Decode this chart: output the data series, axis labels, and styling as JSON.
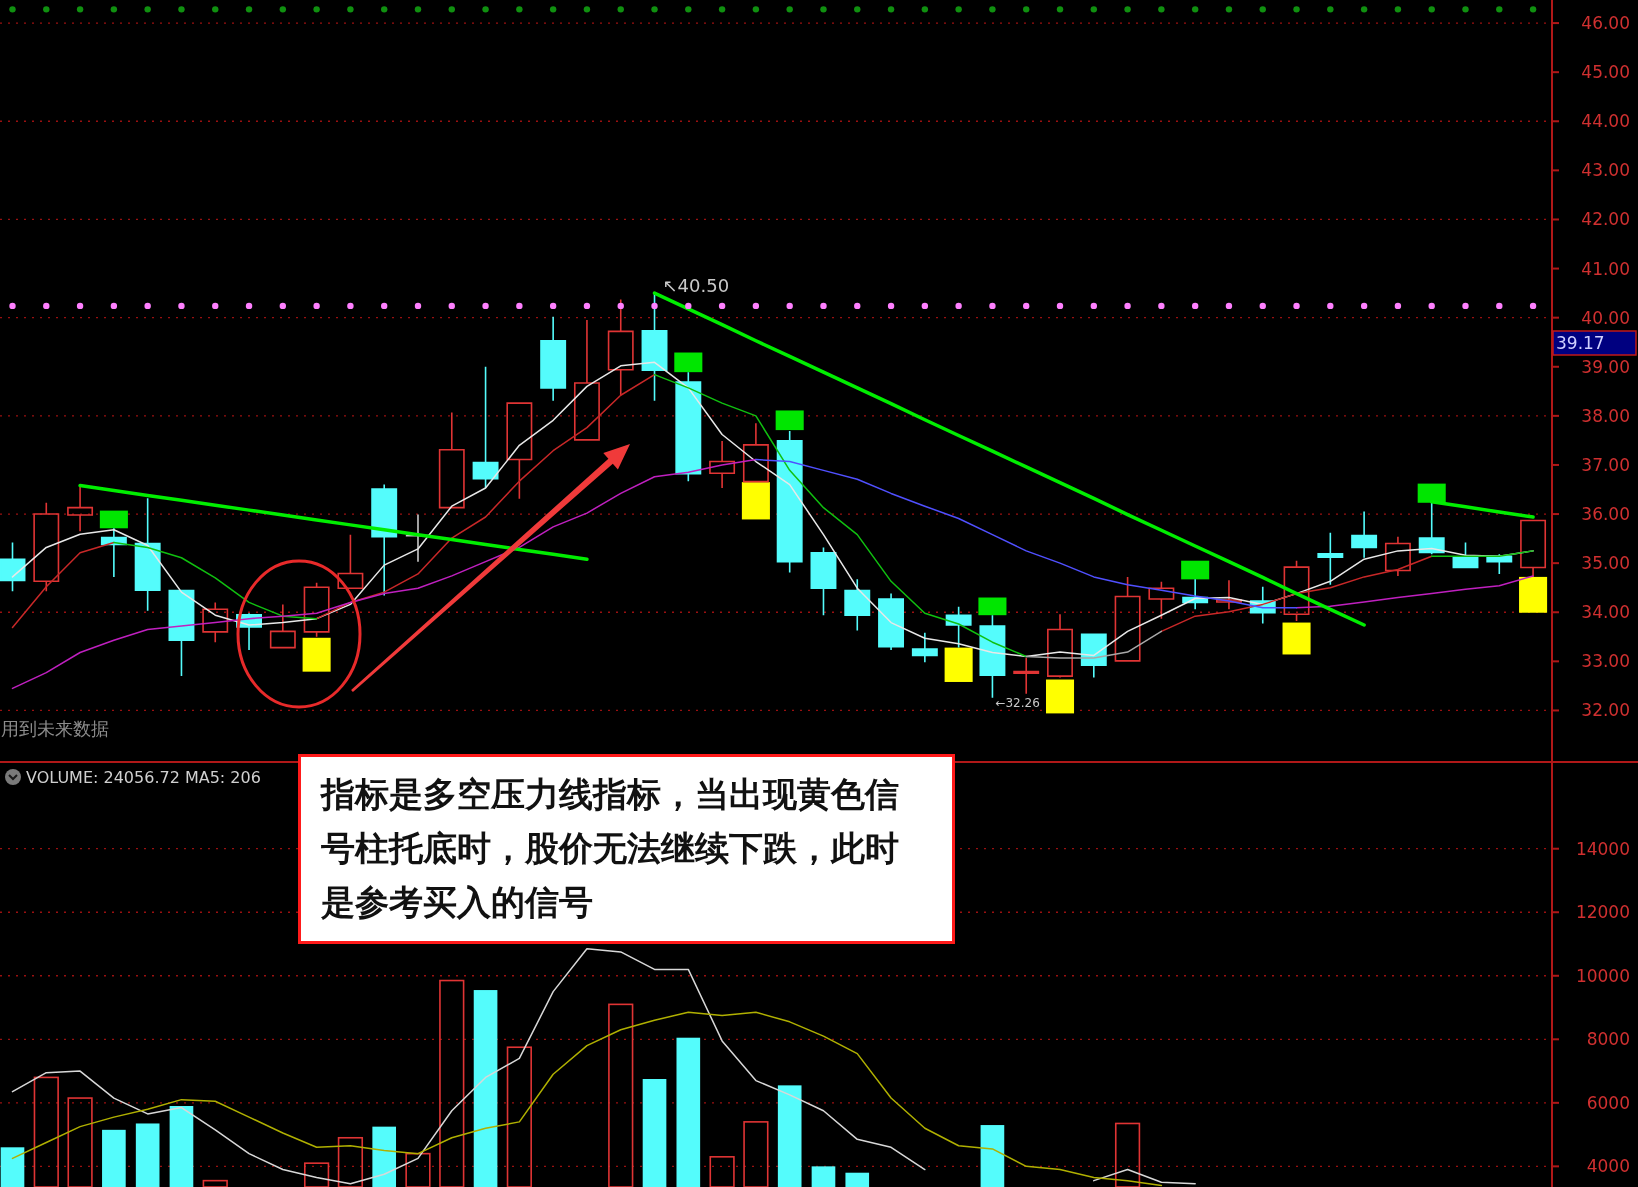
{
  "chart_data": [
    {
      "type": "candlestick",
      "categories": [
        null,
        null,
        null,
        null,
        null,
        null,
        null,
        null,
        null,
        null,
        null,
        null,
        null,
        null,
        null,
        null,
        null,
        null,
        null,
        null,
        null,
        null,
        null,
        null,
        null,
        null,
        null,
        null,
        null,
        null,
        null,
        null,
        null,
        null,
        null,
        null,
        null,
        null,
        null,
        null,
        null,
        null,
        null,
        null,
        null,
        null
      ],
      "ohlc": [
        [
          35.08,
          35.42,
          34.43,
          34.65
        ],
        [
          34.63,
          36.23,
          34.43,
          36.0
        ],
        [
          35.98,
          36.56,
          35.65,
          36.13
        ],
        [
          35.52,
          35.71,
          34.72,
          35.38
        ],
        [
          35.4,
          36.32,
          34.03,
          34.45
        ],
        [
          34.44,
          34.44,
          32.7,
          33.43
        ],
        [
          33.6,
          34.2,
          33.39,
          34.06
        ],
        [
          33.95,
          33.98,
          33.23,
          33.7
        ],
        [
          33.28,
          34.16,
          33.26,
          33.61
        ],
        [
          33.6,
          34.6,
          33.5,
          34.51
        ],
        [
          34.49,
          35.58,
          34.49,
          34.79
        ],
        [
          36.51,
          36.6,
          34.34,
          35.54
        ],
        [
          35.56,
          35.99,
          35.03,
          35.56
        ],
        [
          36.13,
          38.07,
          36.13,
          37.31
        ],
        [
          37.05,
          39.0,
          36.53,
          36.72
        ],
        [
          37.11,
          38.26,
          36.31,
          38.26
        ],
        [
          39.53,
          40.02,
          38.31,
          38.57
        ],
        [
          37.51,
          39.95,
          37.51,
          38.67
        ],
        [
          38.94,
          40.37,
          38.42,
          39.72
        ],
        [
          39.73,
          40.5,
          38.31,
          38.93
        ],
        [
          38.69,
          38.89,
          36.67,
          36.82
        ],
        [
          36.83,
          37.49,
          36.53,
          37.07
        ],
        [
          36.66,
          37.85,
          36.66,
          37.41
        ],
        [
          37.49,
          37.69,
          34.81,
          35.03
        ],
        [
          35.21,
          35.32,
          33.94,
          34.49
        ],
        [
          34.44,
          34.67,
          33.63,
          33.94
        ],
        [
          34.27,
          34.38,
          33.23,
          33.3
        ],
        [
          33.25,
          33.58,
          32.98,
          33.12
        ],
        [
          33.94,
          34.11,
          33.28,
          33.74
        ],
        [
          33.72,
          33.94,
          32.26,
          32.72
        ],
        [
          32.76,
          33.07,
          32.34,
          32.79
        ],
        [
          32.7,
          33.96,
          32.67,
          33.65
        ],
        [
          33.55,
          33.55,
          32.67,
          32.92
        ],
        [
          33.01,
          34.72,
          33.01,
          34.32
        ],
        [
          34.27,
          34.62,
          33.87,
          34.49
        ],
        [
          34.3,
          34.67,
          34.06,
          34.2
        ],
        [
          34.21,
          34.65,
          34.06,
          34.25
        ],
        [
          34.23,
          34.52,
          33.77,
          33.99
        ],
        [
          33.96,
          35.05,
          33.82,
          34.92
        ],
        [
          35.19,
          35.62,
          34.56,
          35.12
        ],
        [
          35.56,
          36.05,
          35.11,
          35.32
        ],
        [
          34.85,
          35.54,
          34.74,
          35.4
        ],
        [
          35.51,
          36.23,
          35.18,
          35.22
        ],
        [
          35.13,
          35.42,
          34.91,
          34.91
        ],
        [
          35.14,
          35.18,
          34.78,
          35.03
        ],
        [
          34.91,
          35.87,
          34.72,
          35.87
        ]
      ],
      "colors": [
        "#54fcfc",
        "#e03434",
        "#e03434",
        "#54fcfc",
        "#54fcfc",
        "#54fcfc",
        "#e03434",
        "#54fcfc",
        "#e03434",
        "#e03434",
        "#e03434",
        "#54fcfc",
        "#c8c8c8",
        "#e03434",
        "#54fcfc",
        "#e03434",
        "#54fcfc",
        "#e03434",
        "#e03434",
        "#54fcfc",
        "#54fcfc",
        "#e03434",
        "#e03434",
        "#54fcfc",
        "#54fcfc",
        "#54fcfc",
        "#54fcfc",
        "#54fcfc",
        "#54fcfc",
        "#54fcfc",
        "#e03434",
        "#e03434",
        "#54fcfc",
        "#e03434",
        "#e03434",
        "#54fcfc",
        "#e03434",
        "#54fcfc",
        "#e03434",
        "#54fcfc",
        "#54fcfc",
        "#e03434",
        "#54fcfc",
        "#54fcfc",
        "#54fcfc",
        "#e03434"
      ],
      "series": [
        {
          "type": "line",
          "color": "#e8e8e8",
          "values": [
            34.72,
            35.32,
            35.59,
            35.68,
            35.36,
            34.41,
            33.94,
            33.74,
            33.79,
            33.87,
            34.16,
            34.96,
            35.29,
            36.16,
            36.53,
            37.4,
            37.91,
            38.6,
            39.02,
            39.09,
            38.57,
            37.62,
            37.07,
            36.6,
            35.58,
            34.49,
            33.79,
            33.47,
            33.36,
            33.18,
            33.1,
            33.19,
            33.12,
            33.61,
            33.94,
            34.28,
            34.3,
            34.16,
            34.38,
            34.63,
            35.08,
            35.25,
            35.3,
            35.16,
            35.14,
            35.25
          ]
        },
        {
          "type": "line",
          "color": "#c82828",
          "values": [
            33.69,
            34.52,
            35.21,
            35.42,
            null,
            null,
            null,
            null,
            null,
            33.87,
            34.2,
            34.41,
            34.78,
            35.51,
            35.94,
            36.67,
            37.29,
            37.76,
            38.42,
            38.84,
            null,
            null,
            null,
            null,
            null,
            null,
            null,
            null,
            null,
            null,
            null,
            null,
            null,
            null,
            33.61,
            33.92,
            34.01,
            34.16,
            34.38,
            34.5,
            34.72,
            34.87,
            35.14,
            null,
            null,
            null
          ]
        },
        {
          "type": "line",
          "color": "#10c010",
          "values": [
            null,
            null,
            null,
            35.42,
            35.32,
            35.11,
            34.7,
            34.2,
            33.92,
            33.87,
            null,
            null,
            null,
            null,
            null,
            null,
            null,
            null,
            null,
            38.84,
            38.57,
            38.26,
            38.0,
            36.89,
            36.13,
            35.58,
            34.63,
            33.98,
            33.76,
            33.39,
            33.1,
            null,
            null,
            null,
            null,
            null,
            null,
            null,
            null,
            null,
            null,
            null,
            35.14,
            35.14,
            35.14,
            35.25
          ]
        },
        {
          "type": "line",
          "color": "#a8a8a8",
          "values": [
            null,
            null,
            null,
            null,
            null,
            null,
            null,
            null,
            null,
            null,
            null,
            null,
            null,
            null,
            null,
            null,
            null,
            null,
            null,
            null,
            null,
            null,
            null,
            null,
            null,
            null,
            null,
            null,
            null,
            null,
            33.1,
            33.07,
            33.07,
            33.19,
            33.61,
            null,
            null,
            null,
            null,
            null,
            null,
            null,
            null,
            null,
            null,
            null
          ]
        },
        {
          "type": "line",
          "color": "#c020c0",
          "values": [
            32.45,
            32.77,
            33.18,
            33.43,
            33.65,
            33.72,
            33.79,
            33.87,
            33.92,
            33.98,
            34.2,
            34.38,
            34.49,
            34.74,
            35.03,
            35.32,
            35.74,
            36.02,
            36.42,
            36.76,
            36.85,
            37.0,
            37.11,
            null,
            null,
            null,
            null,
            null,
            null,
            null,
            null,
            null,
            null,
            null,
            null,
            null,
            null,
            null,
            34.09,
            34.12,
            34.21,
            34.3,
            34.38,
            34.47,
            34.54,
            34.74
          ]
        },
        {
          "type": "line",
          "color": "#5050ff",
          "values": [
            null,
            null,
            null,
            null,
            null,
            null,
            null,
            null,
            null,
            null,
            null,
            null,
            null,
            null,
            null,
            null,
            null,
            null,
            null,
            null,
            null,
            null,
            37.11,
            37.07,
            36.89,
            36.71,
            36.42,
            36.16,
            35.91,
            35.58,
            35.25,
            35.0,
            34.72,
            34.56,
            34.45,
            34.33,
            34.23,
            34.09,
            34.09,
            null,
            null,
            null,
            null,
            null,
            null,
            null
          ]
        },
        {
          "type": "line",
          "color": "#00ee00",
          "values": [
            null,
            null,
            36.58,
            36.48,
            36.38,
            36.28,
            36.18,
            36.08,
            35.98,
            35.88,
            35.78,
            35.68,
            35.58,
            35.48,
            35.38,
            35.28,
            35.18,
            35.08,
            null,
            null,
            null,
            null,
            null,
            null,
            null,
            null,
            null,
            null,
            null,
            null,
            null,
            null,
            null,
            null,
            null,
            null,
            null,
            null,
            null,
            null,
            null,
            null,
            null,
            null,
            null,
            null
          ]
        },
        {
          "type": "line",
          "color": "#00ee00",
          "values": [
            null,
            null,
            null,
            null,
            null,
            null,
            null,
            null,
            null,
            null,
            null,
            null,
            null,
            null,
            null,
            null,
            null,
            null,
            null,
            40.5,
            40.18,
            39.86,
            39.53,
            39.21,
            38.89,
            38.57,
            38.25,
            37.92,
            37.6,
            37.28,
            36.96,
            36.64,
            36.32,
            35.99,
            35.67,
            35.35,
            35.03,
            34.71,
            34.38,
            34.06,
            33.74,
            null,
            null,
            null,
            null,
            null
          ]
        },
        {
          "type": "line",
          "color": "#00ee00",
          "values": [
            null,
            null,
            null,
            null,
            null,
            null,
            null,
            null,
            null,
            null,
            null,
            null,
            null,
            null,
            null,
            null,
            null,
            null,
            null,
            null,
            null,
            null,
            null,
            null,
            null,
            null,
            null,
            null,
            null,
            null,
            null,
            null,
            null,
            null,
            null,
            null,
            null,
            null,
            null,
            null,
            null,
            null,
            36.25,
            36.15,
            36.04,
            35.94
          ]
        },
        {
          "type": "bar",
          "color": "#ffff00",
          "base": [
            null,
            null,
            null,
            null,
            null,
            null,
            null,
            null,
            null,
            32.79,
            null,
            null,
            null,
            null,
            null,
            null,
            null,
            null,
            null,
            null,
            null,
            null,
            35.89,
            null,
            null,
            null,
            null,
            null,
            32.58,
            null,
            null,
            31.94,
            null,
            null,
            null,
            null,
            null,
            null,
            33.14,
            null,
            null,
            null,
            null,
            null,
            null,
            33.99
          ],
          "values": [
            null,
            null,
            null,
            null,
            null,
            null,
            null,
            null,
            null,
            0.69,
            null,
            null,
            null,
            null,
            null,
            null,
            null,
            null,
            null,
            null,
            null,
            null,
            0.76,
            null,
            null,
            null,
            null,
            null,
            0.7,
            null,
            null,
            0.69,
            null,
            null,
            null,
            null,
            null,
            null,
            0.65,
            null,
            null,
            null,
            null,
            null,
            null,
            0.73
          ]
        },
        {
          "type": "bar",
          "color": "#00e600",
          "base": [
            null,
            null,
            null,
            35.71,
            null,
            null,
            null,
            null,
            null,
            null,
            null,
            null,
            null,
            null,
            null,
            null,
            null,
            null,
            null,
            null,
            38.89,
            null,
            null,
            37.71,
            null,
            null,
            null,
            null,
            null,
            33.94,
            null,
            null,
            null,
            null,
            null,
            34.67,
            null,
            null,
            null,
            null,
            null,
            null,
            36.23,
            null,
            null,
            null
          ],
          "values": [
            null,
            null,
            null,
            0.36,
            null,
            null,
            null,
            null,
            null,
            null,
            null,
            null,
            null,
            null,
            null,
            null,
            null,
            null,
            null,
            null,
            0.4,
            null,
            null,
            0.4,
            null,
            null,
            null,
            null,
            null,
            0.36,
            null,
            null,
            null,
            null,
            null,
            0.38,
            null,
            null,
            null,
            null,
            null,
            null,
            0.39,
            null,
            null,
            null
          ]
        },
        {
          "type": "scatter",
          "color": "#ff80ff",
          "values": [
            40.24,
            40.24,
            40.24,
            40.24,
            40.24,
            40.24,
            40.24,
            40.24,
            40.24,
            40.24,
            40.24,
            40.24,
            40.24,
            40.24,
            40.24,
            40.24,
            40.24,
            40.24,
            40.24,
            40.24,
            40.24,
            40.24,
            40.24,
            40.24,
            40.24,
            40.24,
            40.24,
            40.24,
            40.24,
            40.24,
            40.24,
            40.24,
            40.24,
            40.24,
            40.24,
            40.24,
            40.24,
            40.24,
            40.24,
            40.24,
            40.24,
            40.24,
            40.24,
            40.24,
            40.24,
            40.24
          ]
        },
        {
          "type": "scatter",
          "color": "#109010",
          "values": [
            46.28,
            46.28,
            46.28,
            46.28,
            46.28,
            46.28,
            46.28,
            46.28,
            46.28,
            46.28,
            46.28,
            46.28,
            46.28,
            46.28,
            46.28,
            46.28,
            46.28,
            46.28,
            46.28,
            46.28,
            46.28,
            46.28,
            46.28,
            46.28,
            46.28,
            46.28,
            46.28,
            46.28,
            46.28,
            46.28,
            46.28,
            46.28,
            46.28,
            46.28,
            46.28,
            46.28,
            46.28,
            46.28,
            46.28,
            46.28,
            46.28,
            46.28,
            46.28,
            46.28,
            46.28,
            46.28
          ]
        }
      ],
      "ylim": [
        30.95,
        46.47
      ],
      "yticks": [
        {
          "value": 32,
          "label": "32.00"
        },
        {
          "value": 33,
          "label": "33.00"
        },
        {
          "value": 34,
          "label": "34.00"
        },
        {
          "value": 35,
          "label": "35.00"
        },
        {
          "value": 36,
          "label": "36.00"
        },
        {
          "value": 37,
          "label": "37.00"
        },
        {
          "value": 38,
          "label": "38.00"
        },
        {
          "value": 39,
          "label": "39.00"
        },
        {
          "value": 40,
          "label": "40.00"
        },
        {
          "value": 41,
          "label": "41.00"
        },
        {
          "value": 42,
          "label": "42.00"
        },
        {
          "value": 43,
          "label": "43.00"
        },
        {
          "value": 44,
          "label": "44.00"
        },
        {
          "value": 45,
          "label": "45.00"
        },
        {
          "value": 46,
          "label": "46.00"
        }
      ],
      "grid": "y",
      "tick_labels": "y",
      "annotations": [
        "用到未来数据",
        "↖40.50",
        "←32.26",
        "39.17"
      ]
    },
    {
      "type": "bar",
      "title": "VOLUME: 24056.72 MA5: 206",
      "categories": [
        null,
        null,
        null,
        null,
        null,
        null,
        null,
        null,
        null,
        null,
        null,
        null,
        null,
        null,
        null,
        null,
        null,
        null,
        null,
        null,
        null,
        null,
        null,
        null,
        null,
        null,
        null,
        null,
        null,
        null,
        null,
        null,
        null,
        null,
        null,
        null,
        null,
        null,
        null,
        null,
        null,
        null,
        null,
        null,
        null,
        null
      ],
      "series": [
        {
          "colors": [
            "#54fcfc",
            "#e03434",
            "#e03434",
            "#54fcfc",
            "#54fcfc",
            "#54fcfc",
            "#e03434",
            null,
            null,
            "#e03434",
            "#e03434",
            "#54fcfc",
            "#e03434",
            "#e03434",
            "#54fcfc",
            "#e03434",
            null,
            null,
            "#e03434",
            "#54fcfc",
            "#54fcfc",
            "#e03434",
            "#e03434",
            "#54fcfc",
            "#54fcfc",
            "#54fcfc",
            null,
            null,
            null,
            "#54fcfc",
            null,
            null,
            null,
            "#e03434",
            null,
            null,
            null,
            null,
            null,
            null,
            null,
            null,
            null,
            null,
            null,
            null
          ],
          "values": [
            4600,
            6800,
            6150,
            5150,
            5350,
            5900,
            3550,
            null,
            null,
            4100,
            4900,
            5250,
            4400,
            9850,
            9550,
            7750,
            null,
            null,
            9100,
            6750,
            8050,
            4300,
            5400,
            6550,
            4000,
            3800,
            null,
            null,
            null,
            5300,
            null,
            null,
            null,
            5350,
            null,
            null,
            null,
            null,
            null,
            null,
            null,
            null,
            null,
            null,
            null,
            null
          ]
        },
        {
          "type": "line",
          "color": "#d8d8d8",
          "values": [
            6350,
            6950,
            7000,
            6150,
            5650,
            5850,
            5150,
            4400,
            3900,
            3650,
            3450,
            3750,
            4250,
            5750,
            6800,
            7400,
            9500,
            10850,
            10750,
            10200,
            10200,
            7950,
            6700,
            6250,
            5750,
            4850,
            4600,
            3900,
            null,
            null,
            null,
            null,
            3550,
            3900,
            3500,
            3450,
            null,
            null,
            null,
            null,
            null,
            null,
            null,
            null,
            null,
            null
          ]
        },
        {
          "type": "line",
          "color": "#b0b000",
          "values": [
            4250,
            4750,
            5250,
            5550,
            5800,
            6100,
            6050,
            5550,
            5050,
            4600,
            4650,
            4500,
            4400,
            4900,
            5200,
            5400,
            6900,
            7800,
            8300,
            8600,
            8850,
            8750,
            8850,
            8550,
            8100,
            7550,
            6150,
            5200,
            4650,
            4550,
            4000,
            3900,
            3650,
            3550,
            3400,
            null,
            null,
            null,
            null,
            null,
            null,
            null,
            null,
            null,
            null,
            null
          ]
        }
      ],
      "ylim": [
        3350,
        16730
      ],
      "yticks": [
        4000,
        6000,
        8000,
        10000,
        12000,
        14000
      ],
      "grid": "y",
      "tick_labels": "y",
      "annotations": [
        "指标是多空压力线指标，当出现黄色信号柱托底时，股价无法继续下跌，此时是参考买入的信号"
      ]
    }
  ]
}
